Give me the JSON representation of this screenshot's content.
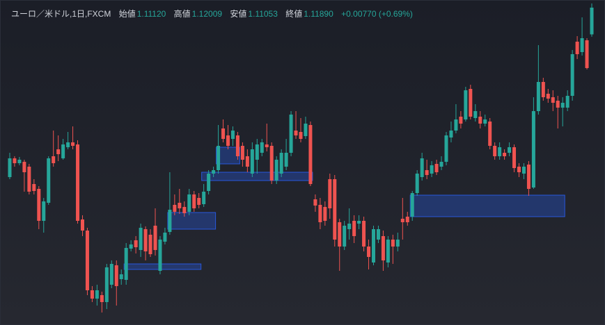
{
  "chart_data": {
    "type": "candlestick",
    "legend": {
      "name": "ユーロ／米ドル,1日,FXCM",
      "fields": [
        {
          "label": "始値",
          "value": "1.11120"
        },
        {
          "label": "高値",
          "value": "1.12009"
        },
        {
          "label": "安値",
          "value": "1.11053"
        },
        {
          "label": "終値",
          "value": "1.11890"
        }
      ],
      "change": "+0.00770 (+0.69%)"
    },
    "up_color": "#26a69a",
    "down_color": "#ef5350",
    "zone_color": "#2962ff",
    "ylim": [
      1.0275,
      1.1211
    ],
    "ohlc": [
      [
        1.0701,
        1.0771,
        1.0695,
        1.0755
      ],
      [
        1.0755,
        1.0761,
        1.0731,
        1.0741
      ],
      [
        1.0741,
        1.0759,
        1.0735,
        1.0751
      ],
      [
        1.0745,
        1.0751,
        1.0659,
        1.0715
      ],
      [
        1.0731,
        1.0739,
        1.0651,
        1.0659
      ],
      [
        1.0681,
        1.0695,
        1.0651,
        1.0661
      ],
      [
        1.0667,
        1.0675,
        1.0551,
        1.0575
      ],
      [
        1.0575,
        1.0641,
        1.0541,
        1.0631
      ],
      [
        1.0627,
        1.0761,
        1.0621,
        1.0755
      ],
      [
        1.0761,
        1.0835,
        1.0731,
        1.0741
      ],
      [
        1.0781,
        1.0821,
        1.0747,
        1.0767
      ],
      [
        1.0755,
        1.0811,
        1.0751,
        1.0795
      ],
      [
        1.0787,
        1.0831,
        1.0781,
        1.0801
      ],
      [
        1.0801,
        1.0847,
        1.0781,
        1.0791
      ],
      [
        1.0795,
        1.0807,
        1.0567,
        1.0575
      ],
      [
        1.0579,
        1.0591,
        1.0531,
        1.0547
      ],
      [
        1.0547,
        1.0555,
        1.0361,
        1.0375
      ],
      [
        1.0375,
        1.0387,
        1.0341,
        1.0351
      ],
      [
        1.0351,
        1.0391,
        1.0331,
        1.0375
      ],
      [
        1.0361,
        1.0371,
        1.0311,
        1.0341
      ],
      [
        1.0341,
        1.0451,
        1.0321,
        1.0441
      ],
      [
        1.0391,
        1.0461,
        1.0381,
        1.0451
      ],
      [
        1.0447,
        1.0461,
        1.0331,
        1.0387
      ],
      [
        1.0407,
        1.0435,
        1.0391,
        1.0421
      ],
      [
        1.0405,
        1.0511,
        1.0391,
        1.0497
      ],
      [
        1.0495,
        1.0519,
        1.0487,
        1.0507
      ],
      [
        1.0519,
        1.0531,
        1.0481,
        1.0499
      ],
      [
        1.0491,
        1.0567,
        1.0471,
        1.0555
      ],
      [
        1.0551,
        1.0559,
        1.0461,
        1.0487
      ],
      [
        1.0535,
        1.0551,
        1.0471,
        1.0479
      ],
      [
        1.0561,
        1.0611,
        1.0475,
        1.0491
      ],
      [
        1.0431,
        1.0531,
        1.0421,
        1.0521
      ],
      [
        1.0515,
        1.0555,
        1.0507,
        1.0541
      ],
      [
        1.0543,
        1.0715,
        1.0535,
        1.0607
      ],
      [
        1.0621,
        1.0651,
        1.0591,
        1.0601
      ],
      [
        1.0627,
        1.0667,
        1.0595,
        1.0611
      ],
      [
        1.0615,
        1.0631,
        1.0587,
        1.0597
      ],
      [
        1.0601,
        1.0667,
        1.0591,
        1.0651
      ],
      [
        1.0651,
        1.0661,
        1.0601,
        1.0611
      ],
      [
        1.0641,
        1.0655,
        1.0611,
        1.0621
      ],
      [
        1.0623,
        1.0681,
        1.0615,
        1.0659
      ],
      [
        1.0661,
        1.0721,
        1.0651,
        1.0711
      ],
      [
        1.0711,
        1.0731,
        1.0701,
        1.0721
      ],
      [
        1.0721,
        1.0851,
        1.0711,
        1.0791
      ],
      [
        1.0841,
        1.0867,
        1.0801,
        1.0811
      ],
      [
        1.0821,
        1.0851,
        1.0781,
        1.0791
      ],
      [
        1.0811,
        1.0847,
        1.0791,
        1.0835
      ],
      [
        1.0821,
        1.0831,
        1.0751,
        1.0761
      ],
      [
        1.0791,
        1.0801,
        1.0731,
        1.0751
      ],
      [
        1.0761,
        1.0781,
        1.0715,
        1.0731
      ],
      [
        1.0711,
        1.0801,
        1.0701,
        1.0781
      ],
      [
        1.0751,
        1.0811,
        1.0711,
        1.0795
      ],
      [
        1.0771,
        1.0811,
        1.0761,
        1.0801
      ],
      [
        1.0795,
        1.0855,
        1.0775,
        1.0787
      ],
      [
        1.0791,
        1.0801,
        1.0681,
        1.0691
      ],
      [
        1.0691,
        1.0761,
        1.0681,
        1.0751
      ],
      [
        1.0711,
        1.0781,
        1.0701,
        1.0771
      ],
      [
        1.0731,
        1.0811,
        1.0721,
        1.0771
      ],
      [
        1.0771,
        1.0891,
        1.0761,
        1.0881
      ],
      [
        1.0835,
        1.0891,
        1.0811,
        1.0821
      ],
      [
        1.0831,
        1.0871,
        1.0801,
        1.0811
      ],
      [
        1.0819,
        1.0875,
        1.0811,
        1.0855
      ],
      [
        1.0851,
        1.0861,
        1.0675,
        1.0681
      ],
      [
        1.0637,
        1.0651,
        1.0601,
        1.0619
      ],
      [
        1.0621,
        1.0641,
        1.0551,
        1.0571
      ],
      [
        1.0615,
        1.0631,
        1.0561,
        1.0575
      ],
      [
        1.0695,
        1.0711,
        1.0581,
        1.0611
      ],
      [
        1.0695,
        1.0707,
        1.0501,
        1.0521
      ],
      [
        1.0571,
        1.0581,
        1.0431,
        1.0501
      ],
      [
        1.0501,
        1.0575,
        1.0491,
        1.0561
      ],
      [
        1.0551,
        1.0611,
        1.0521,
        1.0567
      ],
      [
        1.0575,
        1.0591,
        1.0511,
        1.0531
      ],
      [
        1.0567,
        1.0591,
        1.0551,
        1.0575
      ],
      [
        1.0575,
        1.0587,
        1.0487,
        1.0501
      ],
      [
        1.0501,
        1.0521,
        1.0435,
        1.0471
      ],
      [
        1.0455,
        1.0561,
        1.0447,
        1.0551
      ],
      [
        1.0521,
        1.0561,
        1.0511,
        1.0551
      ],
      [
        1.0531,
        1.0547,
        1.0431,
        1.0461
      ],
      [
        1.0455,
        1.0531,
        1.0441,
        1.0521
      ],
      [
        1.0521,
        1.0535,
        1.0451,
        1.0501
      ],
      [
        1.0501,
        1.0541,
        1.0487,
        1.0521
      ],
      [
        1.0581,
        1.0641,
        1.0521,
        1.0571
      ],
      [
        1.0587,
        1.0601,
        1.0561,
        1.0571
      ],
      [
        1.0587,
        1.0661,
        1.0575,
        1.0655
      ],
      [
        1.0655,
        1.0721,
        1.0647,
        1.0711
      ],
      [
        1.0701,
        1.0771,
        1.0691,
        1.0755
      ],
      [
        1.0721,
        1.0751,
        1.0695,
        1.0707
      ],
      [
        1.0711,
        1.0747,
        1.0701,
        1.0735
      ],
      [
        1.0739,
        1.0751,
        1.0707,
        1.0715
      ],
      [
        1.0731,
        1.0761,
        1.0721,
        1.0745
      ],
      [
        1.0745,
        1.0831,
        1.0735,
        1.0821
      ],
      [
        1.0815,
        1.0861,
        1.0801,
        1.0835
      ],
      [
        1.0835,
        1.0911,
        1.0827,
        1.0867
      ],
      [
        1.0875,
        1.0891,
        1.0841,
        1.0855
      ],
      [
        1.0867,
        1.0961,
        1.0861,
        1.0951
      ],
      [
        1.0955,
        1.0967,
        1.0867,
        1.0875
      ],
      [
        1.0871,
        1.0911,
        1.0861,
        1.0891
      ],
      [
        1.0875,
        1.0891,
        1.0841,
        1.0855
      ],
      [
        1.0855,
        1.0881,
        1.0847,
        1.0867
      ],
      [
        1.0861,
        1.0871,
        1.0781,
        1.0791
      ],
      [
        1.0791,
        1.0801,
        1.0751,
        1.0761
      ],
      [
        1.0761,
        1.0801,
        1.0751,
        1.0787
      ],
      [
        1.0771,
        1.0781,
        1.0751,
        1.0761
      ],
      [
        1.0771,
        1.0801,
        1.0761,
        1.0787
      ],
      [
        1.0787,
        1.0795,
        1.0715,
        1.0727
      ],
      [
        1.0731,
        1.0741,
        1.0701,
        1.0715
      ],
      [
        1.0711,
        1.0741,
        1.0695,
        1.0731
      ],
      [
        1.0737,
        1.0747,
        1.0647,
        1.0667
      ],
      [
        1.0671,
        1.0931,
        1.0667,
        1.0891
      ],
      [
        1.0891,
        1.1081,
        1.0881,
        1.0975
      ],
      [
        1.0975,
        1.0987,
        1.0921,
        1.0931
      ],
      [
        1.0941,
        1.0955,
        1.0915,
        1.0927
      ],
      [
        1.0931,
        1.0951,
        1.0891,
        1.0915
      ],
      [
        1.0921,
        1.0935,
        1.0841,
        1.0901
      ],
      [
        1.0901,
        1.0931,
        1.0847,
        1.0915
      ],
      [
        1.0901,
        1.0951,
        1.0891,
        1.0935
      ],
      [
        1.0935,
        1.1067,
        1.0921,
        1.1055
      ],
      [
        1.1091,
        1.1107,
        1.1041,
        1.1055
      ],
      [
        1.1061,
        1.1161,
        1.1051,
        1.1101
      ],
      [
        1.1095,
        1.1101,
        1.1011,
        1.1015
      ],
      [
        1.1112,
        1.12009,
        1.11053,
        1.1189
      ]
    ],
    "zones": [
      {
        "start": 24,
        "end": 39,
        "top": 1.0451,
        "bottom": 1.0435
      },
      {
        "start": 33,
        "end": 42,
        "top": 1.0599,
        "bottom": 1.0551
      },
      {
        "start": 40,
        "end": 62,
        "top": 1.0715,
        "bottom": 1.0691
      },
      {
        "start": 43,
        "end": 47,
        "top": 1.0787,
        "bottom": 1.0739
      },
      {
        "start": 83,
        "end": 114,
        "top": 1.0649,
        "bottom": 1.0587
      }
    ]
  }
}
